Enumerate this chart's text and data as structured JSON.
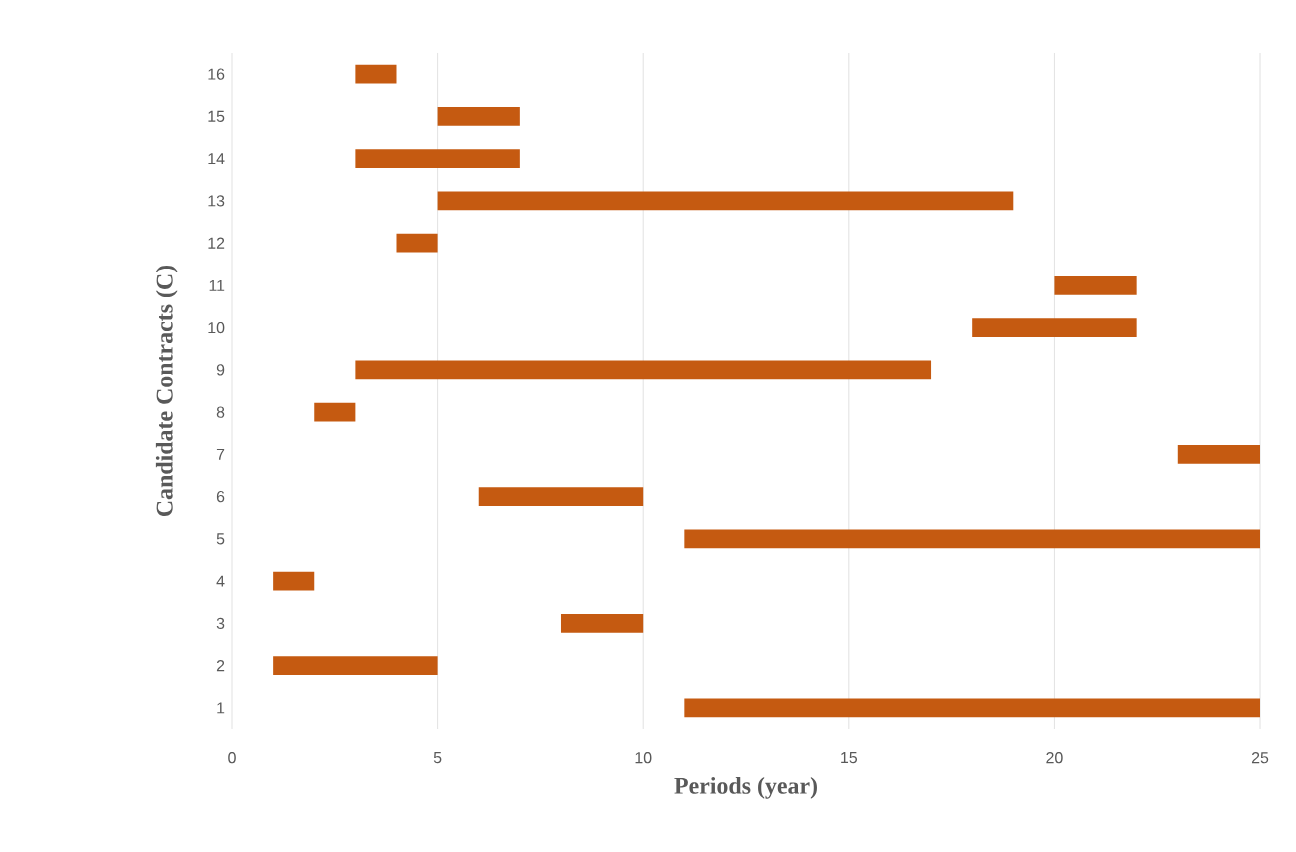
{
  "chart_data": {
    "type": "bar",
    "orientation": "horizontal",
    "xlabel": "Periods (year)",
    "ylabel": "Candidate Contracts (C)",
    "categories": [
      "16",
      "15",
      "14",
      "13",
      "12",
      "11",
      "10",
      "9",
      "8",
      "7",
      "6",
      "5",
      "4",
      "3",
      "2",
      "1"
    ],
    "base": [
      3,
      5,
      3,
      5,
      4,
      20,
      18,
      3,
      2,
      23,
      6,
      11,
      1,
      8,
      1,
      11
    ],
    "values": [
      1,
      2,
      4,
      14,
      1,
      2,
      4,
      14,
      1,
      2,
      4,
      14,
      1,
      2,
      4,
      14
    ],
    "color": "#c55a11",
    "xlim": [
      0,
      25
    ],
    "xticks": [
      0,
      5,
      10,
      15,
      20,
      25
    ],
    "grid": "x"
  }
}
